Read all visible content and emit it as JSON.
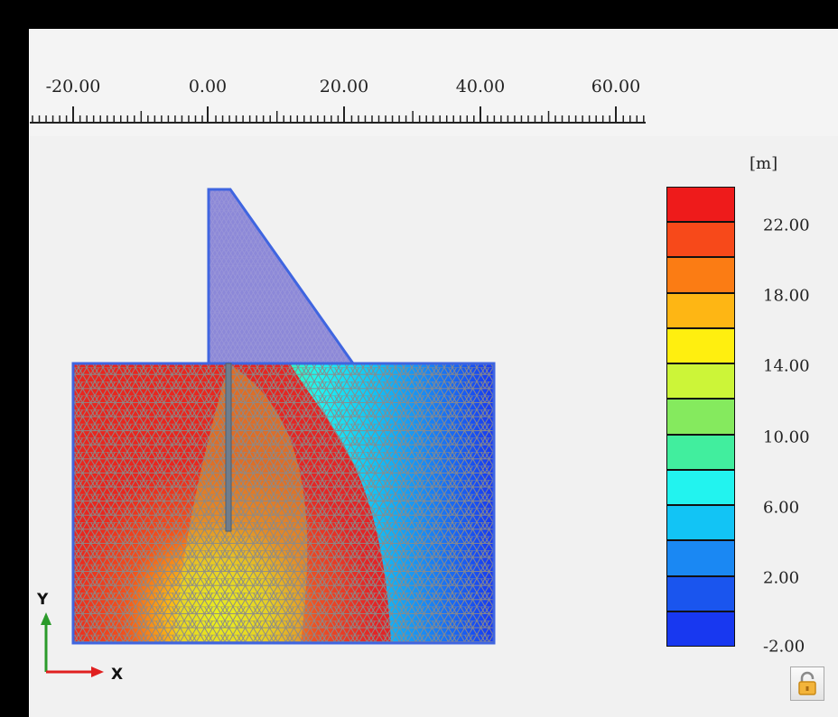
{
  "ruler": {
    "ticks": [
      "-20.00",
      "0.00",
      "20.00",
      "40.00",
      "60.00"
    ]
  },
  "legend": {
    "unit": "[m]",
    "labels": [
      "22.00",
      "18.00",
      "14.00",
      "10.00",
      "6.00",
      "2.00",
      "-2.00"
    ],
    "bands": [
      "#ee1b1b",
      "#f7491a",
      "#fb7c14",
      "#feb614",
      "#ffef0f",
      "#ccf538",
      "#85ea5e",
      "#41ee9e",
      "#22f3ef",
      "#12c4f5",
      "#1a88f3",
      "#1a55ee",
      "#1838f0"
    ]
  },
  "axes": {
    "y_label": "Y",
    "x_label": "X"
  },
  "colors": {
    "structure": "#8c88d8",
    "outline": "#3f65e0",
    "mesh": "#8a8a8a",
    "axis_y": "#2a9a2a",
    "axis_x": "#e02020"
  },
  "icons": {
    "lock_button": "lock-icon"
  }
}
